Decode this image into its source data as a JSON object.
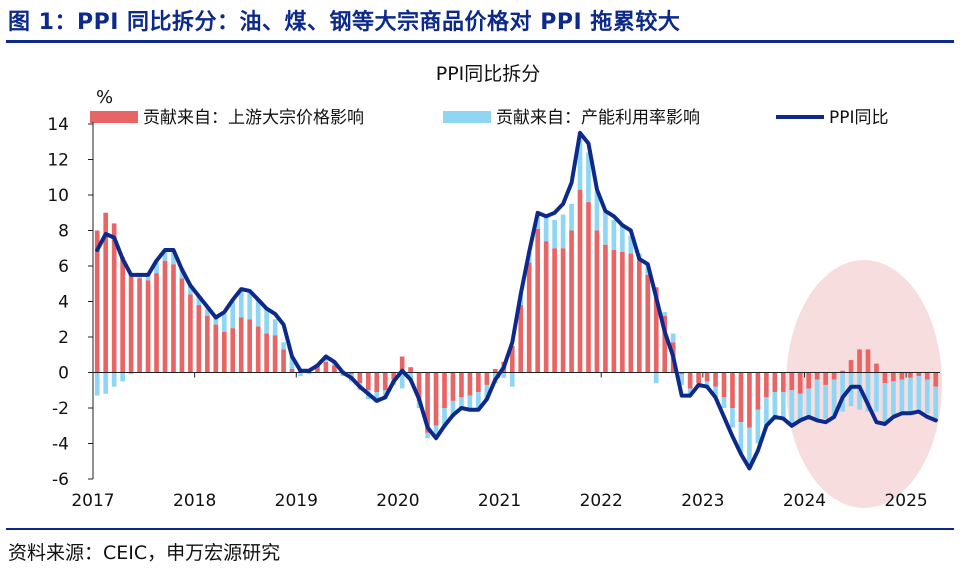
{
  "figure_title": "图 1：PPI 同比拆分：油、煤、钢等大宗商品价格对 PPI 拖累较大",
  "source": "资料来源：CEIC，申万宏源研究",
  "colors": {
    "upstream": "#e86565",
    "capacity": "#8fd6f5",
    "ppi": "#0d2a8a",
    "highlight": "#f6d7d7"
  },
  "chart_data": {
    "type": "bar",
    "title": "PPI同比拆分",
    "ylabel": "%",
    "ylim": [
      -6,
      14
    ],
    "yticks": [
      -6,
      -4,
      -2,
      0,
      2,
      4,
      6,
      8,
      10,
      12,
      14
    ],
    "x_labels": [
      "2017",
      "2018",
      "2019",
      "2020",
      "2021",
      "2022",
      "2023",
      "2024",
      "2025"
    ],
    "x": [
      "2017-01",
      "2017-02",
      "2017-03",
      "2017-04",
      "2017-05",
      "2017-06",
      "2017-07",
      "2017-08",
      "2017-09",
      "2017-10",
      "2017-11",
      "2017-12",
      "2018-01",
      "2018-02",
      "2018-03",
      "2018-04",
      "2018-05",
      "2018-06",
      "2018-07",
      "2018-08",
      "2018-09",
      "2018-10",
      "2018-11",
      "2018-12",
      "2019-01",
      "2019-02",
      "2019-03",
      "2019-04",
      "2019-05",
      "2019-06",
      "2019-07",
      "2019-08",
      "2019-09",
      "2019-10",
      "2019-11",
      "2019-12",
      "2020-01",
      "2020-02",
      "2020-03",
      "2020-04",
      "2020-05",
      "2020-06",
      "2020-07",
      "2020-08",
      "2020-09",
      "2020-10",
      "2020-11",
      "2020-12",
      "2021-01",
      "2021-02",
      "2021-03",
      "2021-04",
      "2021-05",
      "2021-06",
      "2021-07",
      "2021-08",
      "2021-09",
      "2021-10",
      "2021-11",
      "2021-12",
      "2022-01",
      "2022-02",
      "2022-03",
      "2022-04",
      "2022-05",
      "2022-06",
      "2022-07",
      "2022-08",
      "2022-09",
      "2022-10",
      "2022-11",
      "2022-12",
      "2023-01",
      "2023-02",
      "2023-03",
      "2023-04",
      "2023-05",
      "2023-06",
      "2023-07",
      "2023-08",
      "2023-09",
      "2023-10",
      "2023-11",
      "2023-12",
      "2024-01",
      "2024-02",
      "2024-03",
      "2024-04",
      "2024-05",
      "2024-06",
      "2024-07",
      "2024-08",
      "2024-09",
      "2024-10",
      "2024-11",
      "2024-12",
      "2025-01",
      "2025-02",
      "2025-03",
      "2025-04"
    ],
    "series": [
      {
        "name": "贡献来自：上游大宗价格影响",
        "kind": "bar",
        "values": [
          8.0,
          9.0,
          8.4,
          6.5,
          5.6,
          5.3,
          5.2,
          5.6,
          6.3,
          6.1,
          5.3,
          4.4,
          3.8,
          3.2,
          2.7,
          2.3,
          2.5,
          3.1,
          3.0,
          2.6,
          2.2,
          2.1,
          1.3,
          0.2,
          0.1,
          0.2,
          0.4,
          0.6,
          0.4,
          0.1,
          -0.1,
          -0.6,
          -1.0,
          -1.1,
          -1.0,
          -0.4,
          0.9,
          0.3,
          -1.6,
          -3.4,
          -3.0,
          -2.0,
          -1.6,
          -1.4,
          -1.3,
          -1.1,
          -0.7,
          0.2,
          0.6,
          1.5,
          3.8,
          6.2,
          8.1,
          7.4,
          7.0,
          7.0,
          8.0,
          10.3,
          9.6,
          8.0,
          7.2,
          6.9,
          6.8,
          6.7,
          6.3,
          5.5,
          4.8,
          3.2,
          1.7,
          -0.1,
          -0.9,
          -0.6,
          -0.5,
          -0.8,
          -1.4,
          -2.0,
          -2.8,
          -3.1,
          -2.1,
          -1.4,
          -1.1,
          -1.1,
          -1.0,
          -1.2,
          -0.9,
          -0.4,
          -0.7,
          -0.4,
          0.1,
          0.7,
          1.3,
          1.3,
          0.5,
          -0.6,
          -0.5,
          -0.4,
          -0.3,
          -0.2,
          -0.4,
          -0.8
        ]
      },
      {
        "name": "贡献来自：产能利用率影响",
        "kind": "bar",
        "values": [
          -1.3,
          -1.2,
          -0.8,
          -0.5,
          -0.1,
          0.2,
          0.3,
          0.6,
          0.6,
          0.8,
          0.6,
          0.5,
          0.5,
          0.4,
          0.4,
          1.0,
          1.5,
          1.6,
          1.6,
          1.5,
          1.4,
          0.9,
          0.4,
          0.7,
          -0.2,
          -0.1,
          0.1,
          0.3,
          0.2,
          -0.2,
          -0.4,
          -0.4,
          -0.5,
          -0.6,
          -0.5,
          -0.3,
          -0.9,
          -0.4,
          -0.4,
          -0.3,
          -0.7,
          -1.1,
          -0.9,
          -0.6,
          -0.8,
          -1.0,
          -0.8,
          -0.6,
          -0.3,
          -0.8,
          0.6,
          0.6,
          0.9,
          1.4,
          1.6,
          1.9,
          1.5,
          3.1,
          2.8,
          2.2,
          1.9,
          1.7,
          1.5,
          1.0,
          0.4,
          0.6,
          -0.6,
          0.2,
          0.5,
          -0.6,
          -0.4,
          -0.1,
          -0.3,
          -0.6,
          -0.6,
          -1.1,
          -1.8,
          -2.1,
          -1.9,
          -1.6,
          -1.4,
          -1.5,
          -1.9,
          -1.5,
          -1.7,
          -2.3,
          -1.9,
          -2.1,
          -2.2,
          -1.9,
          -2.1,
          -2.2,
          -2.2,
          -2.3,
          -1.9,
          -1.9,
          -2.0,
          -2.0,
          -1.9,
          -1.9
        ]
      },
      {
        "name": "PPI同比",
        "kind": "line",
        "values": [
          6.9,
          7.8,
          7.6,
          6.4,
          5.5,
          5.5,
          5.5,
          6.3,
          6.9,
          6.9,
          5.8,
          4.9,
          4.3,
          3.7,
          3.1,
          3.4,
          4.1,
          4.7,
          4.6,
          4.1,
          3.6,
          3.3,
          2.7,
          0.9,
          0.1,
          0.1,
          0.4,
          0.9,
          0.6,
          0.0,
          -0.3,
          -0.8,
          -1.2,
          -1.6,
          -1.4,
          -0.5,
          0.1,
          -0.4,
          -1.5,
          -3.1,
          -3.7,
          -3.0,
          -2.4,
          -2.0,
          -2.1,
          -2.1,
          -1.5,
          -0.4,
          0.3,
          1.7,
          4.4,
          6.8,
          9.0,
          8.8,
          9.0,
          9.5,
          10.7,
          13.5,
          12.9,
          10.3,
          9.1,
          8.8,
          8.3,
          8.0,
          6.4,
          6.1,
          4.2,
          2.3,
          0.9,
          -1.3,
          -1.3,
          -0.7,
          -0.8,
          -1.4,
          -2.5,
          -3.6,
          -4.6,
          -5.4,
          -4.4,
          -3.0,
          -2.5,
          -2.6,
          -3.0,
          -2.7,
          -2.5,
          -2.7,
          -2.8,
          -2.5,
          -1.4,
          -0.8,
          -0.8,
          -1.8,
          -2.8,
          -2.9,
          -2.5,
          -2.3,
          -2.3,
          -2.2,
          -2.5,
          -2.7
        ]
      }
    ],
    "legend": "top",
    "annotation": "highlighted ellipse over 2024–2025"
  }
}
